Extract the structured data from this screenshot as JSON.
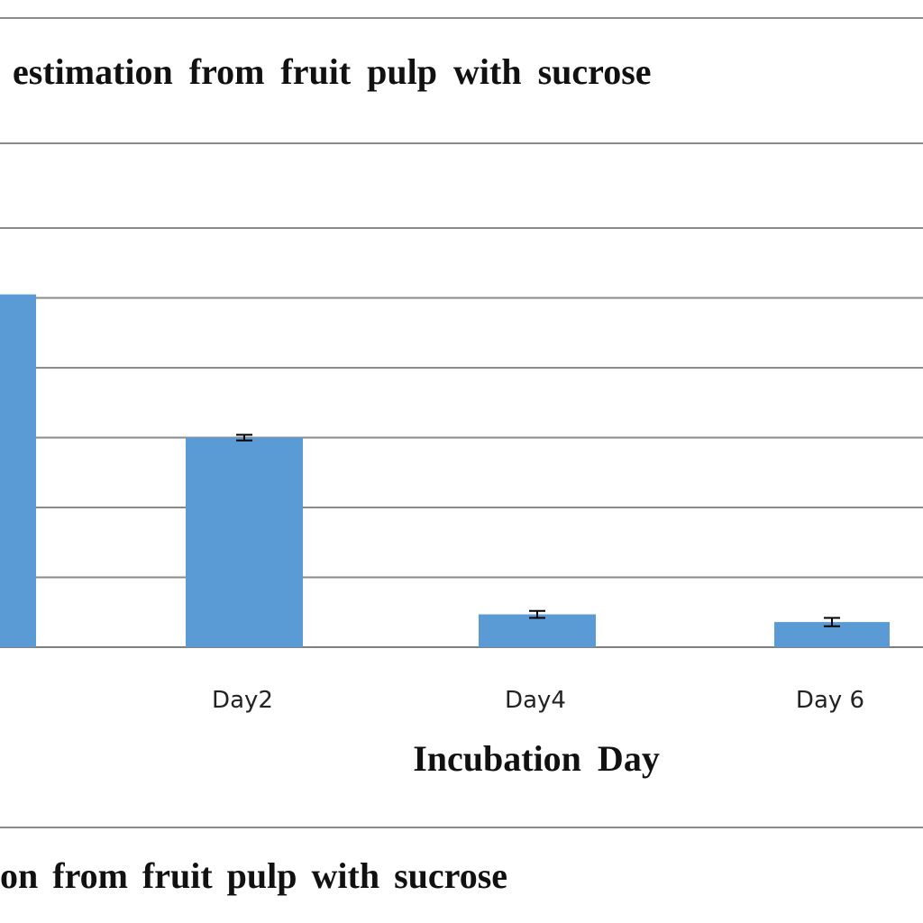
{
  "chart_data": {
    "type": "bar",
    "title": "estimation from fruit pulp with sucrose",
    "xlabel": "Incubation Day",
    "ylabel": "",
    "categories": [
      "",
      "Day2",
      "Day4",
      "Day 6"
    ],
    "values": [
      5.05,
      3.0,
      0.47,
      0.36
    ],
    "error": [
      0.0,
      0.04,
      0.05,
      0.06
    ],
    "ylim": [
      0,
      6
    ],
    "grid": true,
    "legend": "none",
    "bar_color": "#5b9bd5"
  },
  "caption": "on from fruit pulp with sucrose"
}
